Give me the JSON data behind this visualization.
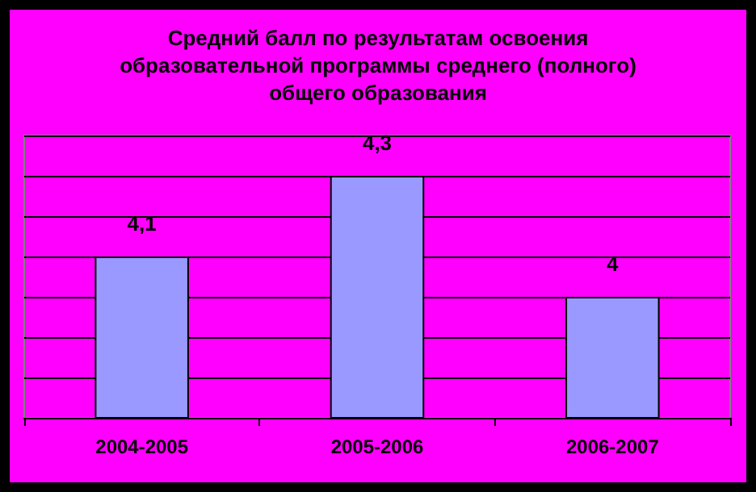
{
  "chart_data": {
    "type": "bar",
    "title": "Средний балл по результатам освоения\nобразовательной программы среднего (полного)\nобщего образования",
    "categories": [
      "2004-2005",
      "2005-2006",
      "2006-2007"
    ],
    "values": [
      4.1,
      4.3,
      4
    ],
    "value_labels": [
      "4,1",
      "4,3",
      "4"
    ],
    "color": "#9999ff",
    "ylim": [
      3.7,
      4.4
    ],
    "yticks": [
      {
        "value": 3.7,
        "label": null
      },
      {
        "value": 3.8,
        "label": null
      },
      {
        "value": 3.9,
        "label": null
      },
      {
        "value": 4.0,
        "label": null
      },
      {
        "value": 4.1,
        "label": null
      },
      {
        "value": 4.2,
        "label": null
      },
      {
        "value": 4.3,
        "label": null
      },
      {
        "value": 4.4,
        "label": null
      }
    ],
    "tick_labels": "x",
    "grid": "y"
  }
}
